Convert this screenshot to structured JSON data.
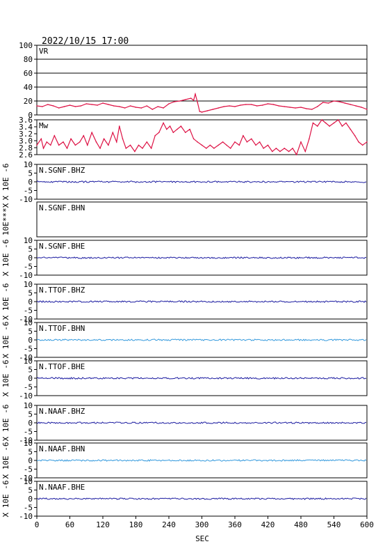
{
  "header": {
    "title": "2022/10/15  17:00"
  },
  "chart_data": {
    "type": "line",
    "x_axis": {
      "label": "SEC",
      "range": [
        0,
        600
      ],
      "ticks": [
        0,
        60,
        120,
        180,
        240,
        300,
        360,
        420,
        480,
        540,
        600
      ]
    },
    "panels": [
      {
        "id": "vr",
        "label": "VR",
        "ylim": [
          0,
          100
        ],
        "yticks": [
          "100",
          "80",
          "60",
          "40",
          "20",
          "0"
        ],
        "grid": true,
        "color": "#dd1144",
        "series": {
          "x": [
            0,
            10,
            20,
            30,
            40,
            50,
            60,
            70,
            80,
            90,
            100,
            110,
            120,
            130,
            140,
            150,
            160,
            170,
            180,
            190,
            200,
            210,
            220,
            230,
            240,
            250,
            260,
            270,
            280,
            285,
            288,
            292,
            296,
            300,
            310,
            320,
            330,
            340,
            350,
            360,
            370,
            380,
            390,
            400,
            410,
            420,
            430,
            440,
            450,
            460,
            470,
            480,
            490,
            500,
            510,
            520,
            530,
            540,
            550,
            560,
            570,
            580,
            590,
            600
          ],
          "values": [
            13,
            12,
            15,
            13,
            10,
            12,
            14,
            12,
            13,
            16,
            15,
            14,
            17,
            15,
            13,
            12,
            10,
            13,
            11,
            10,
            13,
            8,
            12,
            10,
            16,
            19,
            20,
            22,
            24,
            21,
            30,
            18,
            5,
            4,
            6,
            8,
            10,
            12,
            13,
            12,
            14,
            15,
            15,
            13,
            14,
            16,
            15,
            13,
            12,
            11,
            10,
            11,
            9,
            8,
            12,
            18,
            17,
            20,
            19,
            17,
            15,
            13,
            11,
            8
          ]
        }
      },
      {
        "id": "mw",
        "label": "Mw",
        "ylim": [
          2.6,
          3.7
        ],
        "yticks": [
          "3.6",
          "3.4",
          "3.2",
          "3.0",
          "2.8",
          "2.6"
        ],
        "grid": false,
        "color": "#dd1144",
        "series": {
          "x": [
            0,
            8,
            12,
            18,
            25,
            32,
            40,
            48,
            55,
            62,
            70,
            78,
            85,
            92,
            100,
            108,
            115,
            122,
            130,
            138,
            145,
            150,
            156,
            162,
            170,
            178,
            185,
            192,
            200,
            208,
            215,
            222,
            230,
            236,
            242,
            248,
            255,
            262,
            270,
            278,
            285,
            292,
            300,
            308,
            315,
            322,
            330,
            338,
            345,
            352,
            360,
            368,
            375,
            382,
            390,
            398,
            405,
            412,
            420,
            428,
            435,
            442,
            450,
            458,
            465,
            472,
            480,
            488,
            495,
            502,
            510,
            518,
            525,
            532,
            540,
            548,
            555,
            562,
            570,
            578,
            585,
            592,
            600
          ],
          "values": [
            2.9,
            3.1,
            2.8,
            3.0,
            2.9,
            3.2,
            2.9,
            3.0,
            2.8,
            3.1,
            2.9,
            3.0,
            3.2,
            2.9,
            3.3,
            3.0,
            2.8,
            3.1,
            2.9,
            3.3,
            3.0,
            3.5,
            3.1,
            2.8,
            2.9,
            2.7,
            2.9,
            2.8,
            3.0,
            2.8,
            3.2,
            3.3,
            3.6,
            3.4,
            3.5,
            3.3,
            3.4,
            3.5,
            3.3,
            3.4,
            3.1,
            3.0,
            2.9,
            2.8,
            2.9,
            2.8,
            2.9,
            3.0,
            2.9,
            2.8,
            3.0,
            2.9,
            3.2,
            3.0,
            3.1,
            2.9,
            3.0,
            2.8,
            2.9,
            2.7,
            2.8,
            2.7,
            2.8,
            2.7,
            2.8,
            2.6,
            3.0,
            2.7,
            3.1,
            3.6,
            3.5,
            3.7,
            3.6,
            3.5,
            3.6,
            3.7,
            3.5,
            3.6,
            3.4,
            3.2,
            3.0,
            2.9,
            3.0
          ]
        }
      },
      {
        "id": "sgnf-bhz",
        "label": "N.SGNF.BHZ",
        "unit": "X 10E -6",
        "ylim": [
          -10,
          10
        ],
        "yticks": [
          "10",
          "5",
          "0",
          "-5",
          "-10"
        ],
        "color": "#1a1aa0",
        "flat": true
      },
      {
        "id": "sgnf-bhn",
        "label": "N.SGNF.BHN",
        "unit": "10E***X",
        "ylim": [
          -10,
          10
        ],
        "yticks": [],
        "color": "#1a1aa0",
        "flat": false
      },
      {
        "id": "sgnf-bhe",
        "label": "N.SGNF.BHE",
        "unit": "X 10E -6",
        "ylim": [
          -10,
          10
        ],
        "yticks": [
          "10",
          "5",
          "0",
          "-5",
          "-10"
        ],
        "color": "#1a1aa0",
        "flat": true
      },
      {
        "id": "ttof-bhz",
        "label": "N.TTOF.BHZ",
        "unit": "X 10E -6",
        "ylim": [
          -10,
          10
        ],
        "yticks": [
          "10",
          "5",
          "0",
          "-5",
          "-10"
        ],
        "color": "#1a1aa0",
        "flat": true
      },
      {
        "id": "ttof-bhn",
        "label": "N.TTOF.BHN",
        "unit": "X 10E -6",
        "ylim": [
          -10,
          10
        ],
        "yticks": [
          "10",
          "5",
          "0",
          "-5",
          "-10"
        ],
        "color": "#3399dd",
        "flat": true
      },
      {
        "id": "ttof-bhe",
        "label": "N.TTOF.BHE",
        "unit": "X 10E -6",
        "ylim": [
          -10,
          10
        ],
        "yticks": [
          "10",
          "5",
          "0",
          "-5",
          "-10"
        ],
        "color": "#1a1aa0",
        "flat": true
      },
      {
        "id": "naaf-bhz",
        "label": "N.NAAF.BHZ",
        "unit": "X 10E -6",
        "ylim": [
          -10,
          10
        ],
        "yticks": [
          "10",
          "5",
          "0",
          "-5",
          "-10"
        ],
        "color": "#1a1aa0",
        "flat": true
      },
      {
        "id": "naaf-bhn",
        "label": "N.NAAF.BHN",
        "unit": "X 10E -6",
        "ylim": [
          -10,
          10
        ],
        "yticks": [
          "10",
          "5",
          "0",
          "-5",
          "-10"
        ],
        "color": "#3399dd",
        "flat": true
      },
      {
        "id": "naaf-bhe",
        "label": "N.NAAF.BHE",
        "unit": "X 10E -6",
        "ylim": [
          -10,
          10
        ],
        "yticks": [
          "10",
          "5",
          "0",
          "-5",
          "-10"
        ],
        "color": "#1a1aa0",
        "flat": true
      }
    ]
  }
}
